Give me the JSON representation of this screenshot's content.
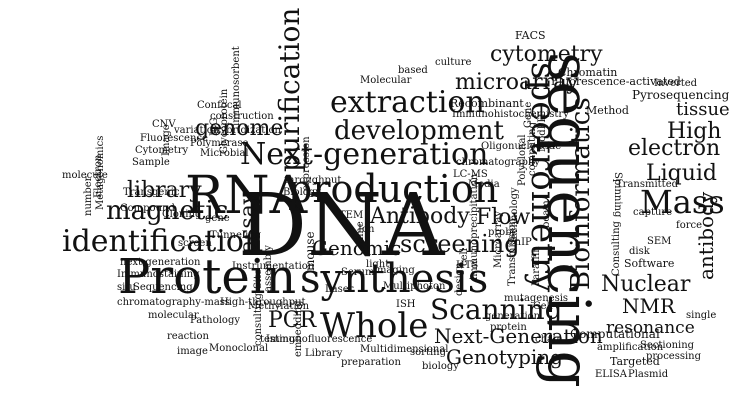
{
  "words": [
    {
      "text": "DNA"
    },
    {
      "text": "Protein"
    },
    {
      "text": "sequencing"
    },
    {
      "text": "RNA"
    },
    {
      "text": "production"
    },
    {
      "text": "synthesis"
    },
    {
      "text": "identification"
    },
    {
      "text": "Next-generation"
    },
    {
      "text": "purification"
    },
    {
      "text": "spectrometry"
    },
    {
      "text": "Bioinformatics"
    },
    {
      "text": "development"
    },
    {
      "text": "extraction"
    },
    {
      "text": "Mass"
    },
    {
      "text": "Whole"
    },
    {
      "text": "Scanning"
    },
    {
      "text": "High"
    },
    {
      "text": "Liquid"
    },
    {
      "text": "electron"
    },
    {
      "text": "genome"
    },
    {
      "text": "library"
    },
    {
      "text": "magnetic"
    },
    {
      "text": "assay"
    },
    {
      "text": "Antibody"
    },
    {
      "text": "microarray"
    },
    {
      "text": "cytometry"
    },
    {
      "text": "tissue"
    },
    {
      "text": "screening"
    },
    {
      "text": "Flow"
    },
    {
      "text": "Genomic"
    },
    {
      "text": "Nuclear"
    },
    {
      "text": "NMR"
    },
    {
      "text": "PCR"
    },
    {
      "text": "resonance"
    },
    {
      "text": "Next-Generation"
    },
    {
      "text": "Genotyping"
    },
    {
      "text": "antibody"
    },
    {
      "text": "Computational"
    },
    {
      "text": "FACS"
    },
    {
      "text": "Chromatin"
    },
    {
      "text": "Fluorescence-activated"
    },
    {
      "text": "Inverted"
    },
    {
      "text": "Pyrosequencing"
    },
    {
      "text": "Method"
    },
    {
      "text": "Recombinant"
    },
    {
      "text": "Immunohistochemistry"
    },
    {
      "text": "Oligonucleotide"
    },
    {
      "text": "ModPIT"
    },
    {
      "text": "computing"
    },
    {
      "text": "Polyclonal"
    },
    {
      "text": "chromatography"
    },
    {
      "text": "LC-MS"
    },
    {
      "text": "Media"
    },
    {
      "text": "Spinning"
    },
    {
      "text": "Transmitted"
    },
    {
      "text": "capture"
    },
    {
      "text": "Consulting"
    },
    {
      "text": "force"
    },
    {
      "text": "SEM"
    },
    {
      "text": "disk"
    },
    {
      "text": "Software"
    },
    {
      "text": "Cell"
    },
    {
      "text": "single"
    },
    {
      "text": "Targeted"
    },
    {
      "text": "processing"
    },
    {
      "text": "Sectioning"
    },
    {
      "text": "amplification"
    },
    {
      "text": "ELISA"
    },
    {
      "text": "Plasmid"
    },
    {
      "text": "chain"
    },
    {
      "text": "generation"
    },
    {
      "text": "protein"
    },
    {
      "text": "mutagenesis"
    },
    {
      "text": "sorting"
    },
    {
      "text": "Multidimensional"
    },
    {
      "text": "biology"
    },
    {
      "text": "Library"
    },
    {
      "text": "preparation"
    },
    {
      "text": "Immunofluorescence"
    },
    {
      "text": "testing"
    },
    {
      "text": "consulting"
    },
    {
      "text": "embedding"
    },
    {
      "text": "Methylation"
    },
    {
      "text": "ISH"
    },
    {
      "text": "High-throughput"
    },
    {
      "text": "Pathology"
    },
    {
      "text": "reaction"
    },
    {
      "text": "molecular"
    },
    {
      "text": "image"
    },
    {
      "text": "Monoclonal"
    },
    {
      "text": "chromatography-mass"
    },
    {
      "text": "Sequencing"
    },
    {
      "text": "situ"
    },
    {
      "text": "Immunostaining"
    },
    {
      "text": "next-generation"
    },
    {
      "text": "Instrumentation"
    },
    {
      "text": "Laser"
    },
    {
      "text": "Multiphoton"
    },
    {
      "text": "Imaging"
    },
    {
      "text": "Serum"
    },
    {
      "text": "Ion"
    },
    {
      "text": "TEM"
    },
    {
      "text": "HTS"
    },
    {
      "text": "light"
    },
    {
      "text": "time"
    },
    {
      "text": "mouse"
    },
    {
      "text": "Site"
    },
    {
      "text": "assembly"
    },
    {
      "text": "Tunneling"
    },
    {
      "text": "screen"
    },
    {
      "text": "Cloning"
    },
    {
      "text": "gene"
    },
    {
      "text": "Compound"
    },
    {
      "text": "Transgenic"
    },
    {
      "text": "Metagenomics"
    },
    {
      "text": "Electron"
    },
    {
      "text": "number"
    },
    {
      "text": "molecule"
    },
    {
      "text": "Sample"
    },
    {
      "text": "Cytometry"
    },
    {
      "text": "Fluorescence"
    },
    {
      "text": "CNV"
    },
    {
      "text": "variation"
    },
    {
      "text": "Image"
    },
    {
      "text": "Polymerase"
    },
    {
      "text": "Microbial"
    },
    {
      "text": "hybridization"
    },
    {
      "text": "IgG"
    },
    {
      "text": "Glycoprotein"
    },
    {
      "text": "Confocal"
    },
    {
      "text": "construction"
    },
    {
      "text": "immunosorbent"
    },
    {
      "text": "Molecular"
    },
    {
      "text": "based"
    },
    {
      "text": "culture"
    },
    {
      "text": "expression"
    },
    {
      "text": "Gene"
    },
    {
      "text": "throughput"
    },
    {
      "text": "Biology"
    },
    {
      "text": "Microarray"
    },
    {
      "text": "Transmission"
    },
    {
      "text": "technology"
    },
    {
      "text": "beam"
    },
    {
      "text": "immunoprecipitation"
    },
    {
      "text": "probe"
    },
    {
      "text": "ChIP"
    },
    {
      "text": "cell"
    },
    {
      "text": "Paraffin"
    },
    {
      "text": "design"
    }
  ]
}
